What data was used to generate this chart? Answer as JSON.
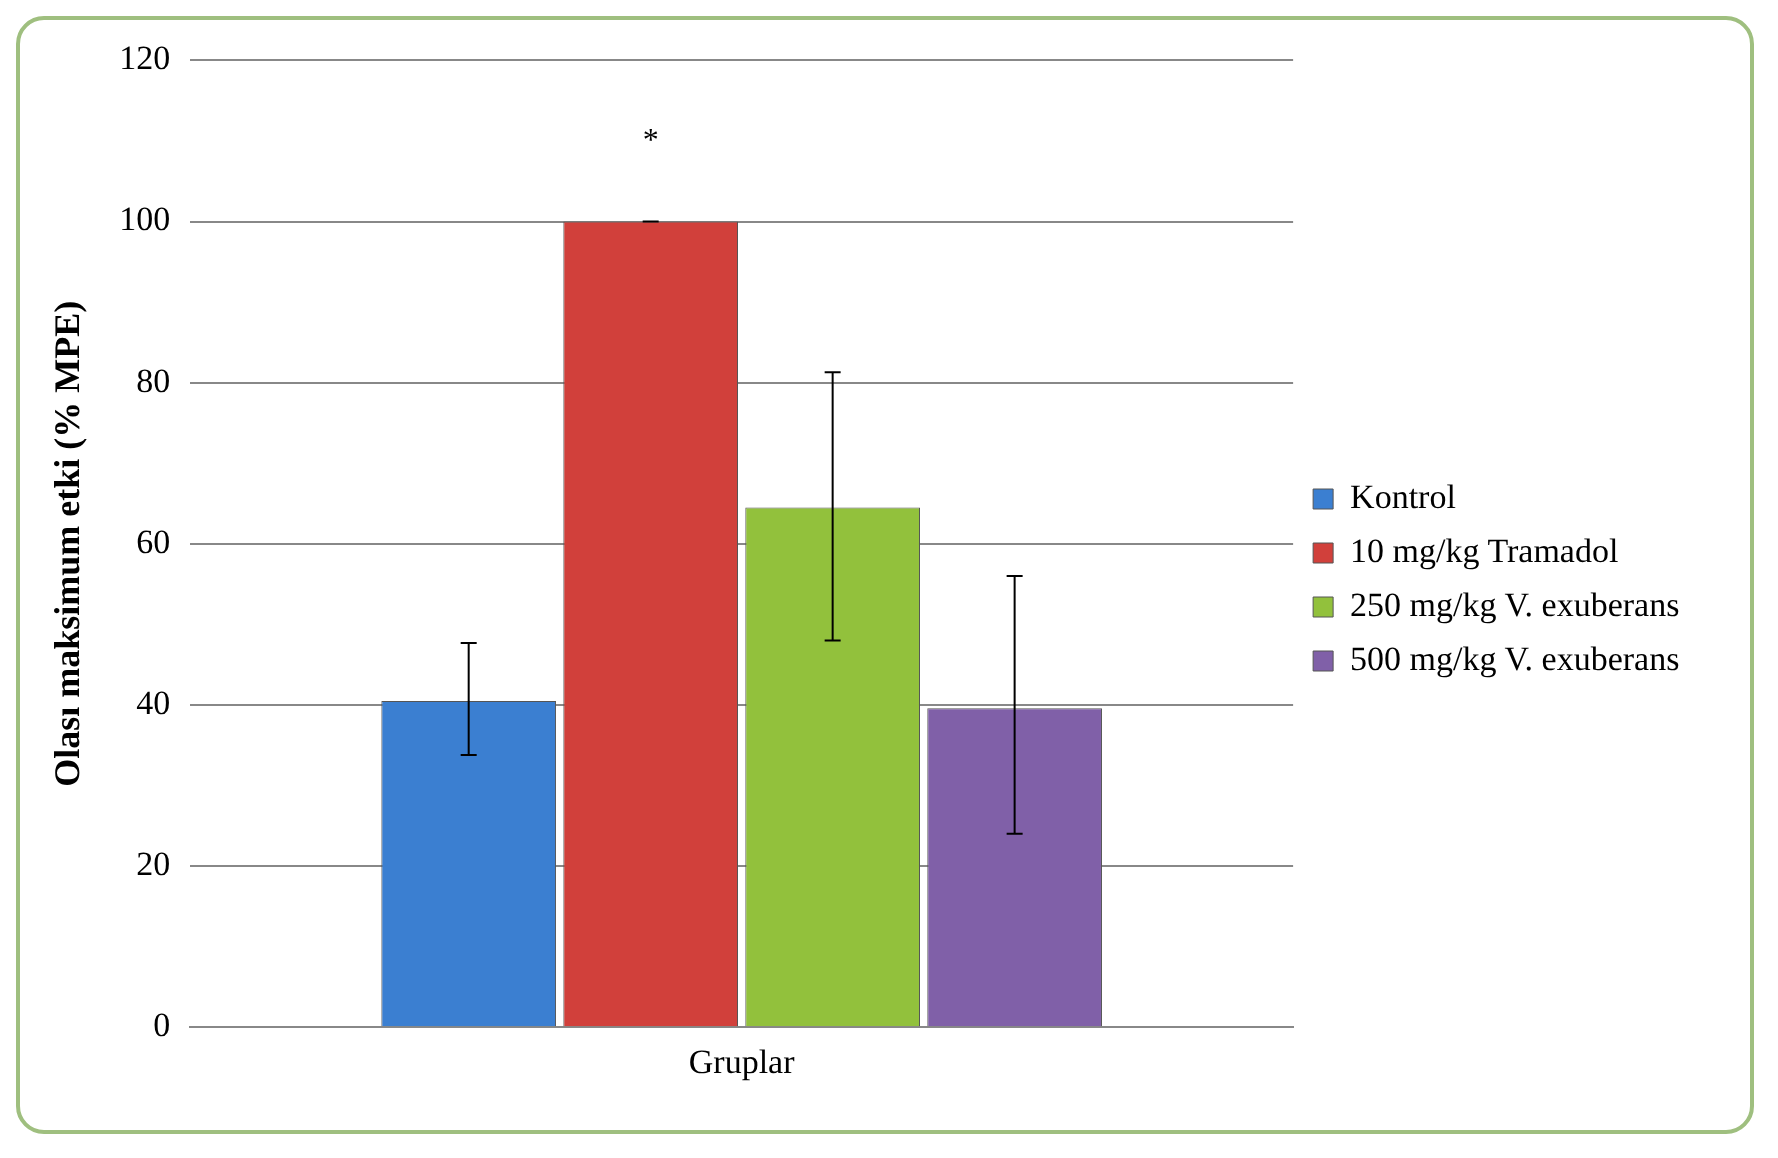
{
  "chart_data": {
    "type": "bar",
    "ylabel": "Olası maksimum etki (% MPE)",
    "categories": [
      "Gruplar"
    ],
    "series": [
      {
        "name": "Kontrol",
        "color": "#3b7fd1",
        "values": [
          40.5
        ],
        "errors": [
          [
            33.8,
            47.7
          ]
        ]
      },
      {
        "name": "10 mg/kg Tramadol",
        "color": "#d1403b",
        "values": [
          100
        ],
        "errors": [
          [
            100,
            100
          ]
        ]
      },
      {
        "name": "250 mg/kg V. exuberans",
        "color": "#92c13c",
        "values": [
          64.5
        ],
        "errors": [
          [
            48,
            81.3
          ]
        ]
      },
      {
        "name": "500 mg/kg V. exuberans",
        "color": "#8060a8",
        "values": [
          39.6
        ],
        "errors": [
          [
            24,
            56
          ]
        ]
      }
    ],
    "annotations": [
      "*"
    ],
    "ylim": [
      0,
      120
    ],
    "yticks": [
      0,
      20,
      40,
      60,
      80,
      100,
      120
    ],
    "grid": "y",
    "legend": "right"
  }
}
